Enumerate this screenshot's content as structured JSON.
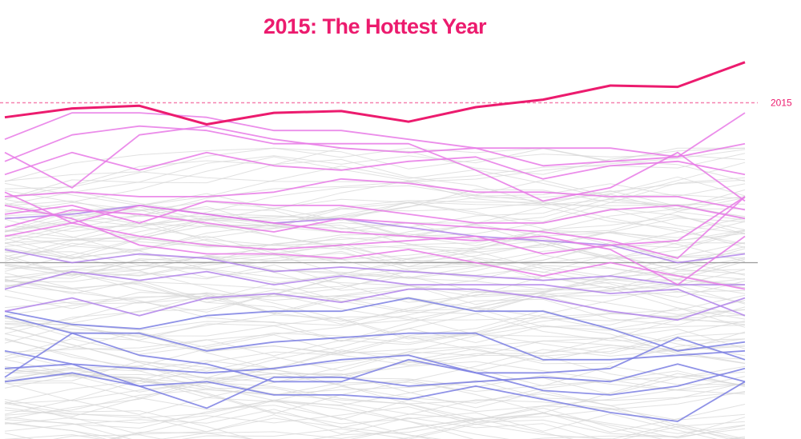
{
  "chart_data": {
    "type": "line",
    "title": "2015: The Hottest Year",
    "xlabel": "",
    "ylabel": "",
    "colors": {
      "title": "#ec1b6e",
      "highlight": "#ec1b6e",
      "warm": "#e879e6",
      "mid": "#b184ea",
      "cool": "#7b7fe3",
      "background_lines": "#d7d7d7",
      "baseline": "#9b9b9b"
    },
    "x": [
      1,
      2,
      3,
      4,
      5,
      6,
      7,
      8,
      9,
      10,
      11,
      12
    ],
    "ylim": [
      -4,
      3.7
    ],
    "baseline": 0,
    "reference_line": {
      "label": "2015",
      "value": 3.63
    },
    "highlight_series": {
      "name": "2015",
      "values": [
        3.3,
        3.5,
        3.56,
        3.14,
        3.4,
        3.44,
        3.2,
        3.53,
        3.7,
        4.02,
        3.99,
        4.55
      ]
    },
    "warm_series": [
      [
        2.8,
        3.4,
        3.4,
        3.3,
        3.0,
        3.0,
        2.8,
        2.6,
        2.2,
        2.3,
        2.4,
        2.7
      ],
      [
        2.5,
        1.7,
        2.9,
        3.1,
        2.8,
        2.6,
        2.5,
        2.6,
        2.6,
        2.6,
        2.4,
        3.4
      ],
      [
        2.3,
        2.9,
        3.1,
        3.0,
        2.7,
        2.7,
        2.7,
        2.1,
        1.4,
        1.7,
        2.5,
        1.4
      ],
      [
        2.0,
        2.5,
        2.1,
        2.5,
        2.2,
        2.1,
        2.3,
        2.4,
        1.9,
        2.2,
        2.3,
        2.0
      ],
      [
        1.5,
        1.6,
        1.5,
        1.5,
        1.6,
        1.9,
        1.8,
        1.6,
        1.6,
        1.5,
        1.5,
        1.2
      ],
      [
        1.1,
        1.3,
        0.9,
        1.4,
        1.3,
        1.3,
        1.1,
        0.9,
        0.9,
        1.2,
        1.3,
        1.0
      ],
      [
        0.8,
        1.2,
        1.1,
        0.9,
        0.7,
        1.0,
        0.9,
        0.8,
        0.7,
        0.5,
        0.1,
        1.5
      ],
      [
        0.6,
        0.9,
        0.6,
        0.4,
        0.3,
        0.4,
        0.5,
        0.6,
        0.2,
        0.4,
        0.5,
        1.5
      ],
      [
        1.6,
        0.9,
        1.3,
        1.1,
        0.9,
        0.7,
        0.6,
        0.5,
        0.6,
        0.3,
        -0.5,
        0.6
      ],
      [
        1.3,
        1.0,
        0.4,
        0.2,
        0.2,
        0.1,
        0.3,
        0.0,
        -0.3,
        0.0,
        -0.3,
        -0.6
      ]
    ],
    "mid_series": [
      [
        1.0,
        1.1,
        1.3,
        1.1,
        0.9,
        1.0,
        0.8,
        0.6,
        0.5,
        0.4,
        0.0,
        0.2
      ],
      [
        0.3,
        0.0,
        0.2,
        0.1,
        -0.2,
        -0.1,
        -0.2,
        -0.3,
        -0.4,
        -0.3,
        -0.5,
        -0.5
      ],
      [
        -0.6,
        -0.2,
        -0.4,
        -0.2,
        -0.5,
        -0.3,
        -0.5,
        -0.5,
        -0.5,
        -0.7,
        -0.6,
        -1.2
      ],
      [
        -1.1,
        -0.8,
        -1.2,
        -0.8,
        -0.7,
        -0.9,
        -0.6,
        -0.6,
        -0.8,
        -1.1,
        -1.3,
        -0.8
      ]
    ],
    "cool_series": [
      [
        -1.1,
        -1.4,
        -1.5,
        -1.2,
        -1.1,
        -1.1,
        -0.8,
        -1.1,
        -1.1,
        -1.5,
        -2.0,
        -1.8
      ],
      [
        -1.2,
        -1.6,
        -1.6,
        -2.0,
        -1.8,
        -1.7,
        -1.6,
        -1.6,
        -2.2,
        -2.2,
        -2.1,
        -2.0
      ],
      [
        -2.0,
        -2.3,
        -2.4,
        -2.5,
        -2.4,
        -2.2,
        -2.1,
        -2.5,
        -2.5,
        -2.4,
        -1.7,
        -2.2
      ],
      [
        -2.4,
        -2.3,
        -2.8,
        -3.3,
        -2.6,
        -2.6,
        -2.8,
        -2.7,
        -2.6,
        -2.7,
        -2.3,
        -2.7
      ],
      [
        -2.6,
        -1.6,
        -2.1,
        -2.3,
        -2.7,
        -2.7,
        -2.2,
        -2.5,
        -2.9,
        -3.0,
        -2.8,
        -2.4
      ],
      [
        -2.7,
        -2.5,
        -2.8,
        -2.7,
        -3.0,
        -3.0,
        -3.1,
        -2.8,
        -3.1,
        -3.4,
        -3.6,
        -2.7
      ]
    ],
    "background_series_count": 110,
    "grid": false,
    "legend": "none"
  }
}
